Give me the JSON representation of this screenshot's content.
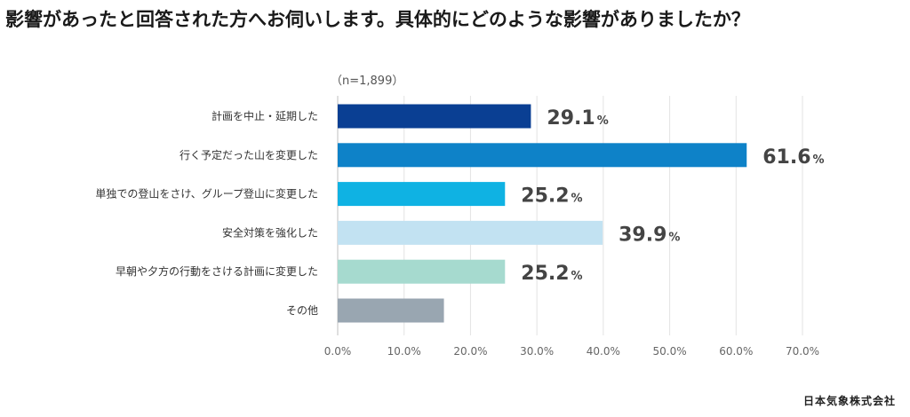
{
  "chart_data": {
    "type": "bar",
    "orientation": "horizontal",
    "title": "影響があったと回答された方へお伺いします。具体的にどのような影響がありましたか？",
    "sample_note": "（n=1,899）",
    "categories": [
      "計画を中止・延期した",
      "行く予定だった山を変更した",
      "単独での登山をさけ、グループ登山に変更した",
      "安全対策を強化した",
      "早朝や夕方の行動をさける計画に変更した",
      "その他"
    ],
    "values": [
      29.1,
      61.6,
      25.2,
      39.9,
      25.2,
      16.0
    ],
    "value_labels": [
      "29.1",
      "61.6",
      "25.2",
      "39.9",
      "25.2",
      ""
    ],
    "value_suffix": "%",
    "bar_colors": [
      "#0a3f93",
      "#0e82c8",
      "#0fb2e3",
      "#c2e2f2",
      "#a6dacf",
      "#99a6b1"
    ],
    "xlim": [
      0,
      70
    ],
    "x_ticks": [
      "0.0%",
      "10.0%",
      "20.0%",
      "30.0%",
      "40.0%",
      "50.0%",
      "60.0%",
      "70.0%"
    ],
    "grid": true,
    "legend": "none"
  },
  "source": "日本気象株式会社"
}
